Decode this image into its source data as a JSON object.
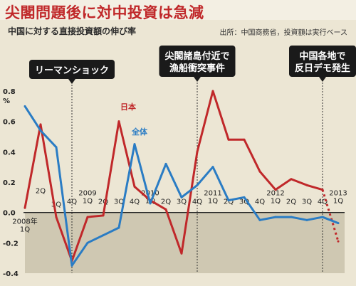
{
  "header": {
    "title": "尖閣問題後に対中投資は急減",
    "subtitle": "中国に対する直接投資額の伸び率",
    "source": "出所：中国商務省，投資額は実行ベース"
  },
  "annotations": [
    {
      "lines": [
        "リーマンショック"
      ],
      "quarter": 3
    },
    {
      "lines": [
        "尖閣諸島付近で",
        "漁船衝突事件"
      ],
      "quarter": 11
    },
    {
      "lines": [
        "中国各地で",
        "反日デモ発生"
      ],
      "quarter": 19
    }
  ],
  "colors": {
    "japan": "#c0282a",
    "total": "#2a7cc4",
    "title": "#c0282a",
    "negative_band": "#cfc8b2",
    "background": "#ece6d4"
  },
  "chart_data": {
    "type": "line",
    "title": "中国に対する直接投資額の伸び率",
    "y_unit": "%",
    "ylim": [
      -0.4,
      0.8
    ],
    "yticks": [
      "0.8",
      "0.6",
      "0.4",
      "0.2",
      "0.0",
      "-0.2",
      "-0.4"
    ],
    "ytick_values": [
      0.8,
      0.6,
      0.4,
      0.2,
      0.0,
      -0.2,
      -0.4
    ],
    "x": [
      "2008年1Q",
      "2Q",
      "3Q",
      "4Q",
      "2009年1Q",
      "2Q",
      "3Q",
      "4Q",
      "2010年1Q",
      "2Q",
      "3Q",
      "4Q",
      "2011年1Q",
      "2Q",
      "3Q",
      "4Q",
      "2012年1Q",
      "2Q",
      "3Q",
      "4Q",
      "2013年1Q"
    ],
    "xtick_labels": [
      {
        "q": 0,
        "text": "2008年"
      },
      {
        "q": 0,
        "text": "1Q"
      },
      {
        "q": 1,
        "text": "2Q"
      },
      {
        "q": 2,
        "text": "3Q"
      },
      {
        "q": 3,
        "text": "4Q"
      },
      {
        "q": 4,
        "text": "2009"
      },
      {
        "q": 4,
        "text": "1Q"
      },
      {
        "q": 5,
        "text": "2Q"
      },
      {
        "q": 6,
        "text": "3Q"
      },
      {
        "q": 7,
        "text": "4Q"
      },
      {
        "q": 8,
        "text": "2010"
      },
      {
        "q": 8,
        "text": "1Q"
      },
      {
        "q": 9,
        "text": "2Q"
      },
      {
        "q": 10,
        "text": "3Q"
      },
      {
        "q": 11,
        "text": "4Q"
      },
      {
        "q": 12,
        "text": "2011"
      },
      {
        "q": 12,
        "text": "1Q"
      },
      {
        "q": 13,
        "text": "2Q"
      },
      {
        "q": 14,
        "text": "3Q"
      },
      {
        "q": 15,
        "text": "4Q"
      },
      {
        "q": 16,
        "text": "2012"
      },
      {
        "q": 16,
        "text": "1Q"
      },
      {
        "q": 17,
        "text": "2Q"
      },
      {
        "q": 18,
        "text": "3Q"
      },
      {
        "q": 19,
        "text": "4Q"
      },
      {
        "q": 20,
        "text": "2013"
      },
      {
        "q": 20,
        "text": "1Q"
      }
    ],
    "series": [
      {
        "name": "日本",
        "color": "#c0282a",
        "values": [
          0.03,
          0.58,
          -0.03,
          -0.32,
          -0.03,
          -0.02,
          0.6,
          0.17,
          0.08,
          0.02,
          -0.27,
          0.4,
          0.8,
          0.48,
          0.48,
          0.27,
          0.15,
          0.22,
          0.18,
          0.15,
          -0.19
        ],
        "dashed_from": 19
      },
      {
        "name": "全体",
        "color": "#2a7cc4",
        "values": [
          0.7,
          0.54,
          0.43,
          -0.35,
          -0.2,
          -0.15,
          -0.1,
          0.45,
          0.06,
          0.32,
          0.1,
          0.18,
          0.3,
          0.08,
          0.1,
          -0.05,
          -0.03,
          -0.03,
          -0.05,
          -0.03,
          -0.07
        ]
      }
    ],
    "grid": false,
    "legend": "inline"
  }
}
